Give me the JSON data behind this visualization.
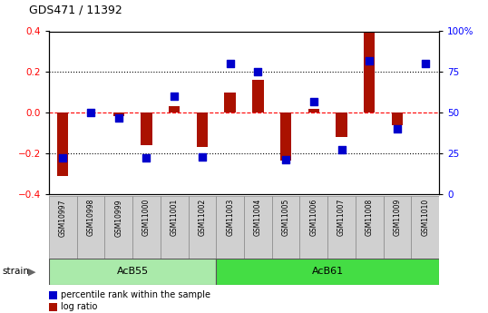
{
  "title": "GDS471 / 11392",
  "samples": [
    "GSM10997",
    "GSM10998",
    "GSM10999",
    "GSM11000",
    "GSM11001",
    "GSM11002",
    "GSM11003",
    "GSM11004",
    "GSM11005",
    "GSM11006",
    "GSM11007",
    "GSM11008",
    "GSM11009",
    "GSM11010"
  ],
  "log_ratio": [
    -0.31,
    0.0,
    -0.015,
    -0.16,
    0.03,
    -0.17,
    0.1,
    0.16,
    -0.235,
    0.02,
    -0.12,
    0.395,
    -0.06,
    0.0
  ],
  "percentile": [
    22,
    50,
    47,
    22,
    60,
    23,
    80,
    75,
    21,
    57,
    27,
    82,
    40,
    80
  ],
  "groups": [
    {
      "label": "AcB55",
      "start": 0,
      "end": 6,
      "color": "#aaeaaa"
    },
    {
      "label": "AcB61",
      "start": 6,
      "end": 14,
      "color": "#44dd44"
    }
  ],
  "ylim": [
    -0.4,
    0.4
  ],
  "yticks_left": [
    -0.4,
    -0.2,
    0.0,
    0.2,
    0.4
  ],
  "right_yticks_pct": [
    0,
    25,
    50,
    75,
    100
  ],
  "right_ylabels": [
    "0",
    "25",
    "50",
    "75",
    "100%"
  ],
  "hlines_dotted": [
    0.2,
    -0.2
  ],
  "bar_color": "#AA1100",
  "dot_color": "#0000CC",
  "bar_width": 0.4,
  "dot_size": 28,
  "strain_label": "strain",
  "legend_items": [
    "log ratio",
    "percentile rank within the sample"
  ],
  "legend_colors": [
    "#AA1100",
    "#0000CC"
  ],
  "sample_box_color": "#D0D0D0",
  "acb55_color": "#aaeaaa",
  "acb61_color": "#44dd44"
}
